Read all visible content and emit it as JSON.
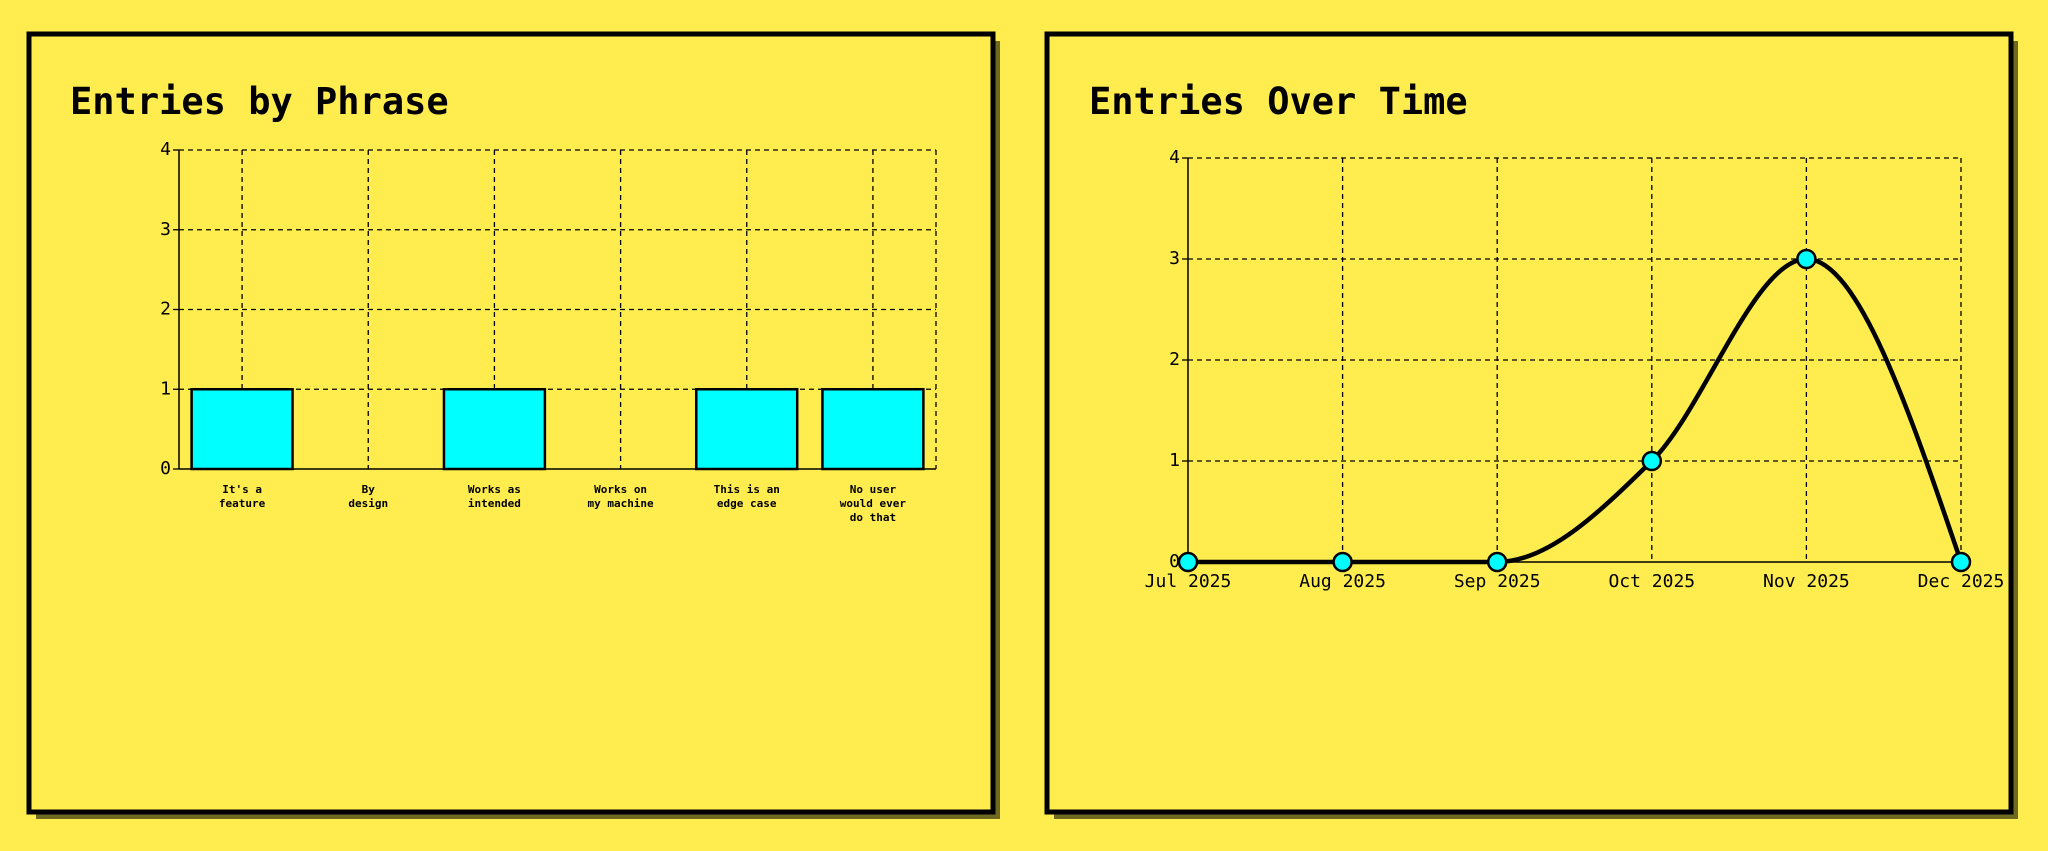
{
  "chart_data": [
    {
      "type": "bar",
      "title": "Entries by Phrase",
      "categories": [
        "It's a\nfeature",
        "By\ndesign",
        "Works as\nintended",
        "Works on\nmy machine",
        "This is an\nedge case",
        "No user\nwould ever\ndo that"
      ],
      "values": [
        1,
        0,
        1,
        0,
        1,
        1
      ],
      "color": "#00ffff",
      "ylim": [
        0,
        4
      ],
      "yticks": [
        0,
        1,
        2,
        3,
        4
      ],
      "grid": true
    },
    {
      "type": "line",
      "title": "Entries Over Time",
      "categories": [
        "Jul 2025",
        "Aug 2025",
        "Sep 2025",
        "Oct 2025",
        "Nov 2025",
        "Dec 2025"
      ],
      "values": [
        0,
        0,
        0,
        1,
        3,
        0
      ],
      "color": "#00ffff",
      "ylim": [
        0,
        4
      ],
      "yticks": [
        0,
        1,
        2,
        3,
        4
      ],
      "grid": true
    }
  ]
}
